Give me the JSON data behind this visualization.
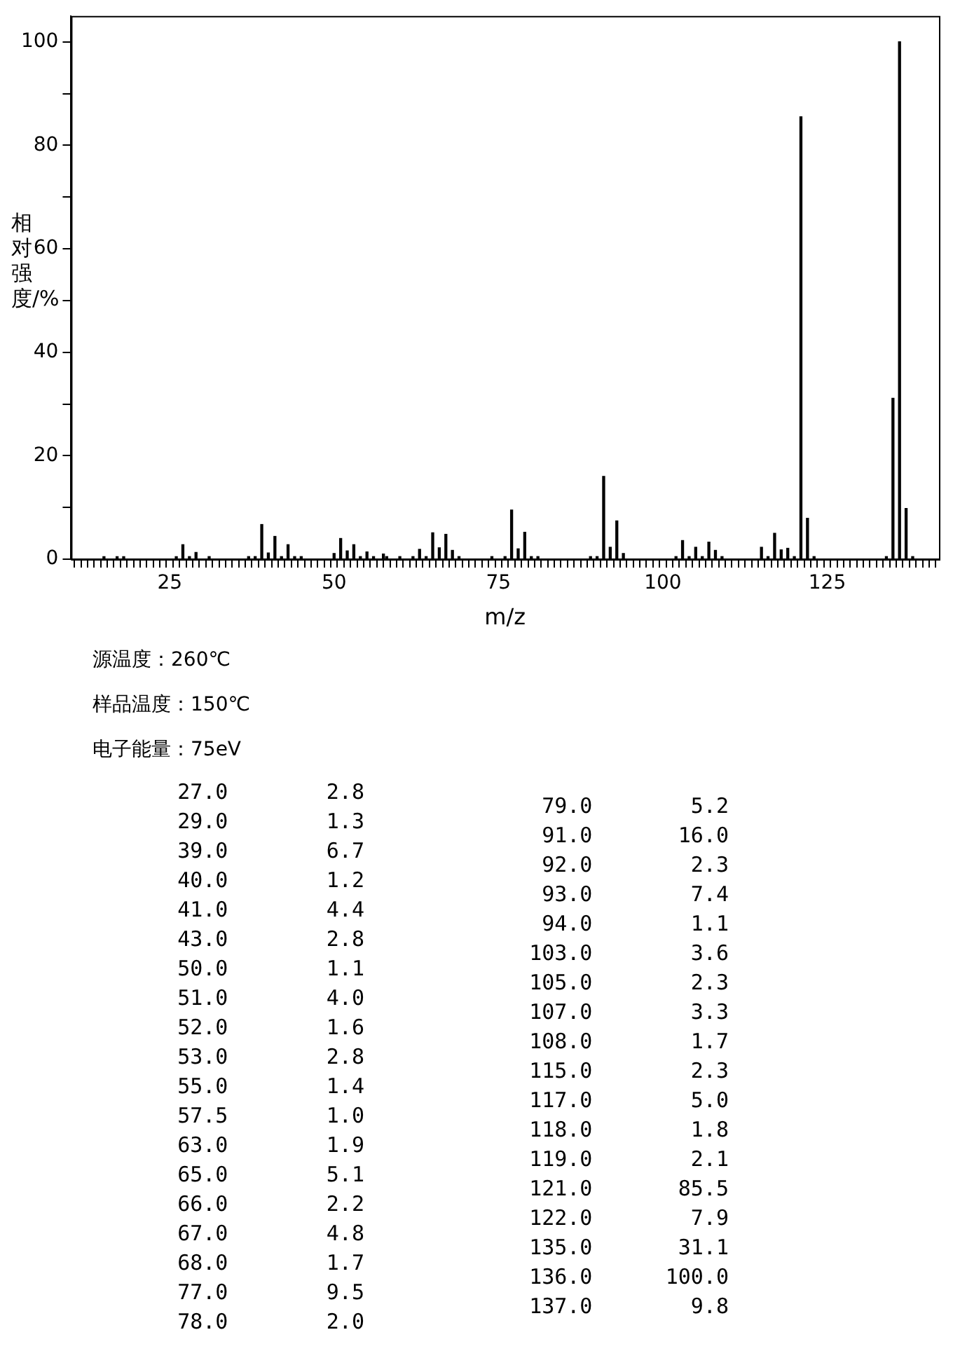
{
  "chart_data": [
    {
      "type": "bar",
      "xlabel": "m/z",
      "ylabel": "相对强度/%",
      "x": [
        15,
        17,
        18,
        26,
        27,
        28,
        29,
        31,
        37,
        38,
        39,
        40,
        41,
        42,
        43,
        44,
        45,
        50,
        51,
        52,
        53,
        54,
        55,
        56,
        57.5,
        58,
        60,
        62,
        63,
        64,
        65,
        66,
        67,
        68,
        69,
        74,
        76,
        77,
        78,
        79,
        80,
        81,
        89,
        90,
        91,
        92,
        93,
        94,
        102,
        103,
        104,
        105,
        106,
        107,
        108,
        109,
        115,
        116,
        117,
        118,
        119,
        120,
        121,
        122,
        123,
        134,
        135,
        136,
        137,
        138
      ],
      "values": [
        0.5,
        0.5,
        0.5,
        0.5,
        2.8,
        0.5,
        1.3,
        0.5,
        0.5,
        0.5,
        6.7,
        1.2,
        4.4,
        0.5,
        2.8,
        0.5,
        0.5,
        1.1,
        4.0,
        1.6,
        2.8,
        0.5,
        1.4,
        0.5,
        1.0,
        0.5,
        0.5,
        0.5,
        1.9,
        0.5,
        5.1,
        2.2,
        4.8,
        1.7,
        0.5,
        0.5,
        0.5,
        9.5,
        2.0,
        5.2,
        0.5,
        0.5,
        0.5,
        0.5,
        16,
        2.3,
        7.4,
        1.1,
        0.5,
        3.6,
        0.5,
        2.3,
        0.5,
        3.3,
        1.7,
        0.5,
        2.3,
        0.5,
        5.0,
        1.8,
        2.1,
        0.5,
        85.5,
        7.9,
        0.5,
        0.5,
        31.1,
        100,
        9.8,
        0.5
      ],
      "color": "#000000",
      "xlim": [
        10,
        142
      ],
      "xticks": [
        {
          "value": 10,
          "label": null
        },
        {
          "value": 11,
          "label": null
        },
        {
          "value": 12,
          "label": null
        },
        {
          "value": 13,
          "label": null
        },
        {
          "value": 14,
          "label": null
        },
        {
          "value": 15,
          "label": null
        },
        {
          "value": 16,
          "label": null
        },
        {
          "value": 17,
          "label": null
        },
        {
          "value": 18,
          "label": null
        },
        {
          "value": 19,
          "label": null
        },
        {
          "value": 20,
          "label": null
        },
        {
          "value": 21,
          "label": null
        },
        {
          "value": 22,
          "label": null
        },
        {
          "value": 23,
          "label": null
        },
        {
          "value": 24,
          "label": null
        },
        25,
        {
          "value": 26,
          "label": null
        },
        {
          "value": 27,
          "label": null
        },
        {
          "value": 28,
          "label": null
        },
        {
          "value": 29,
          "label": null
        },
        {
          "value": 30,
          "label": null
        },
        {
          "value": 31,
          "label": null
        },
        {
          "value": 32,
          "label": null
        },
        {
          "value": 33,
          "label": null
        },
        {
          "value": 34,
          "label": null
        },
        {
          "value": 35,
          "label": null
        },
        {
          "value": 36,
          "label": null
        },
        {
          "value": 37,
          "label": null
        },
        {
          "value": 38,
          "label": null
        },
        {
          "value": 39,
          "label": null
        },
        {
          "value": 40,
          "label": null
        },
        {
          "value": 41,
          "label": null
        },
        {
          "value": 42,
          "label": null
        },
        {
          "value": 43,
          "label": null
        },
        {
          "value": 44,
          "label": null
        },
        {
          "value": 45,
          "label": null
        },
        {
          "value": 46,
          "label": null
        },
        {
          "value": 47,
          "label": null
        },
        {
          "value": 48,
          "label": null
        },
        {
          "value": 49,
          "label": null
        },
        50,
        {
          "value": 51,
          "label": null
        },
        {
          "value": 52,
          "label": null
        },
        {
          "value": 53,
          "label": null
        },
        {
          "value": 54,
          "label": null
        },
        {
          "value": 55,
          "label": null
        },
        {
          "value": 56,
          "label": null
        },
        {
          "value": 57,
          "label": null
        },
        {
          "value": 58,
          "label": null
        },
        {
          "value": 59,
          "label": null
        },
        {
          "value": 60,
          "label": null
        },
        {
          "value": 61,
          "label": null
        },
        {
          "value": 62,
          "label": null
        },
        {
          "value": 63,
          "label": null
        },
        {
          "value": 64,
          "label": null
        },
        {
          "value": 65,
          "label": null
        },
        {
          "value": 66,
          "label": null
        },
        {
          "value": 67,
          "label": null
        },
        {
          "value": 68,
          "label": null
        },
        {
          "value": 69,
          "label": null
        },
        {
          "value": 70,
          "label": null
        },
        {
          "value": 71,
          "label": null
        },
        {
          "value": 72,
          "label": null
        },
        {
          "value": 73,
          "label": null
        },
        {
          "value": 74,
          "label": null
        },
        75,
        {
          "value": 76,
          "label": null
        },
        {
          "value": 77,
          "label": null
        },
        {
          "value": 78,
          "label": null
        },
        {
          "value": 79,
          "label": null
        },
        {
          "value": 80,
          "label": null
        },
        {
          "value": 81,
          "label": null
        },
        {
          "value": 82,
          "label": null
        },
        {
          "value": 83,
          "label": null
        },
        {
          "value": 84,
          "label": null
        },
        {
          "value": 85,
          "label": null
        },
        {
          "value": 86,
          "label": null
        },
        {
          "value": 87,
          "label": null
        },
        {
          "value": 88,
          "label": null
        },
        {
          "value": 89,
          "label": null
        },
        {
          "value": 90,
          "label": null
        },
        {
          "value": 91,
          "label": null
        },
        {
          "value": 92,
          "label": null
        },
        {
          "value": 93,
          "label": null
        },
        {
          "value": 94,
          "label": null
        },
        {
          "value": 95,
          "label": null
        },
        {
          "value": 96,
          "label": null
        },
        {
          "value": 97,
          "label": null
        },
        {
          "value": 98,
          "label": null
        },
        {
          "value": 99,
          "label": null
        },
        100,
        {
          "value": 101,
          "label": null
        },
        {
          "value": 102,
          "label": null
        },
        {
          "value": 103,
          "label": null
        },
        {
          "value": 104,
          "label": null
        },
        {
          "value": 105,
          "label": null
        },
        {
          "value": 106,
          "label": null
        },
        {
          "value": 107,
          "label": null
        },
        {
          "value": 108,
          "label": null
        },
        {
          "value": 109,
          "label": null
        },
        {
          "value": 110,
          "label": null
        },
        {
          "value": 111,
          "label": null
        },
        {
          "value": 112,
          "label": null
        },
        {
          "value": 113,
          "label": null
        },
        {
          "value": 114,
          "label": null
        },
        {
          "value": 115,
          "label": null
        },
        {
          "value": 116,
          "label": null
        },
        {
          "value": 117,
          "label": null
        },
        {
          "value": 118,
          "label": null
        },
        {
          "value": 119,
          "label": null
        },
        {
          "value": 120,
          "label": null
        },
        {
          "value": 121,
          "label": null
        },
        {
          "value": 122,
          "label": null
        },
        {
          "value": 123,
          "label": null
        },
        {
          "value": 124,
          "label": null
        },
        125,
        {
          "value": 126,
          "label": null
        },
        {
          "value": 127,
          "label": null
        },
        {
          "value": 128,
          "label": null
        },
        {
          "value": 129,
          "label": null
        },
        {
          "value": 130,
          "label": null
        },
        {
          "value": 131,
          "label": null
        },
        {
          "value": 132,
          "label": null
        },
        {
          "value": 133,
          "label": null
        },
        {
          "value": 134,
          "label": null
        },
        {
          "value": 135,
          "label": null
        },
        {
          "value": 136,
          "label": null
        },
        {
          "value": 137,
          "label": null
        },
        {
          "value": 138,
          "label": null
        },
        {
          "value": 139,
          "label": null
        },
        {
          "value": 140,
          "label": null
        },
        {
          "value": 141,
          "label": null
        }
      ],
      "ylim": [
        0,
        105
      ],
      "yticks": [
        0,
        {
          "value": 10,
          "label": null
        },
        20,
        {
          "value": 30,
          "label": null
        },
        40,
        {
          "value": 50,
          "label": null
        },
        60,
        {
          "value": 70,
          "label": null
        },
        80,
        {
          "value": 90,
          "label": null
        },
        100
      ],
      "grid": false,
      "annotations": [
        "源温度：260℃",
        "样品温度：150℃",
        "电子能量：75eV"
      ]
    },
    {
      "type": "other",
      "categories": [
        "27.0",
        "29.0",
        "39.0",
        "40.0",
        "41.0",
        "43.0",
        "50.0",
        "51.0",
        "52.0",
        "53.0",
        "55.0",
        "57.5",
        "63.0",
        "65.0",
        "66.0",
        "67.0",
        "68.0",
        "77.0",
        "78.0",
        "79.0",
        "91.0",
        "92.0",
        "93.0",
        "94.0",
        "103.0",
        "105.0",
        "107.0",
        "108.0",
        "115.0",
        "117.0",
        "118.0",
        "119.0",
        "121.0",
        "122.0",
        "135.0",
        "136.0",
        "137.0"
      ],
      "values": [
        2.8,
        1.3,
        6.7,
        1.2,
        4.4,
        2.8,
        1.1,
        4.0,
        1.6,
        2.8,
        1.4,
        1.0,
        1.9,
        5.1,
        2.2,
        4.8,
        1.7,
        9.5,
        2.0,
        5.2,
        16,
        2.3,
        7.4,
        1.1,
        3.6,
        2.3,
        3.3,
        1.7,
        2.3,
        5.0,
        1.8,
        2.1,
        85.5,
        7.9,
        31.1,
        100,
        9.8
      ],
      "value_labels": [
        "2.8",
        "1.3",
        "6.7",
        "1.2",
        "4.4",
        "2.8",
        "1.1",
        "4.0",
        "1.6",
        "2.8",
        "1.4",
        "1.0",
        "1.9",
        "5.1",
        "2.2",
        "4.8",
        "1.7",
        "9.5",
        "2.0",
        "5.2",
        "16.0",
        "2.3",
        "7.4",
        "1.1",
        "3.6",
        "2.3",
        "3.3",
        "1.7",
        "2.3",
        "5.0",
        "1.8",
        "2.1",
        "85.5",
        "7.9",
        "31.1",
        "100.0",
        "9.8"
      ]
    }
  ]
}
